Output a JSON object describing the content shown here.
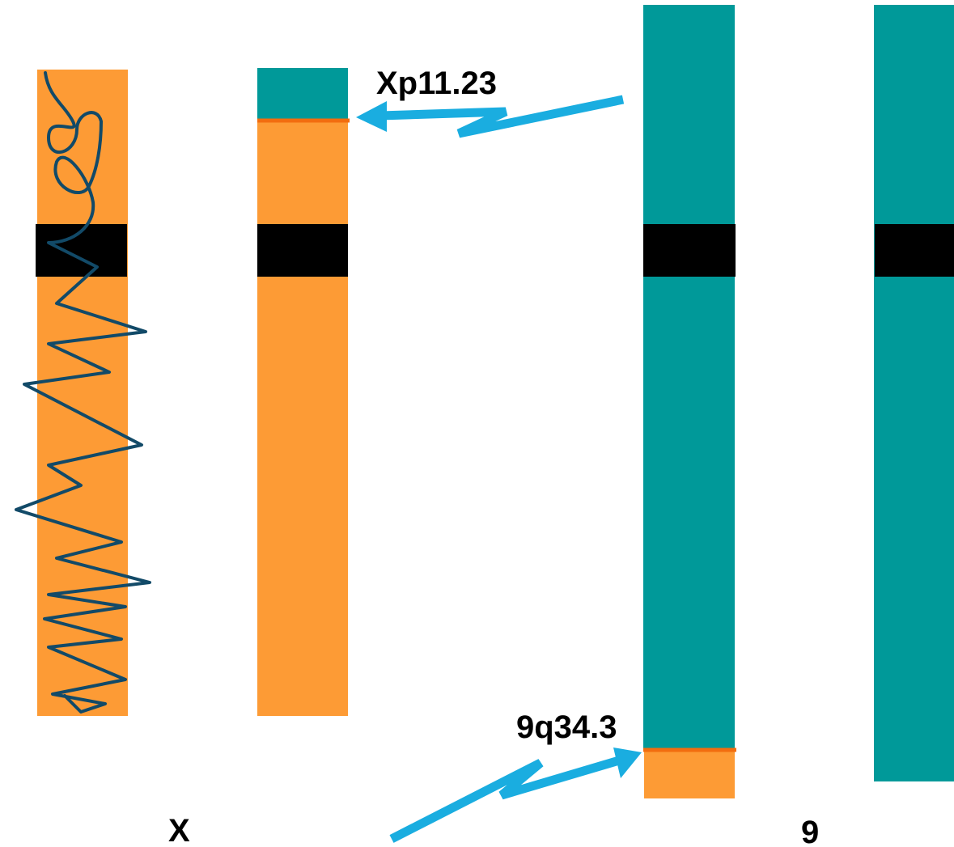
{
  "breakpoints": [
    "Xp11.23",
    "9q34.3"
  ],
  "chromosomes": [
    "X",
    "9"
  ]
}
